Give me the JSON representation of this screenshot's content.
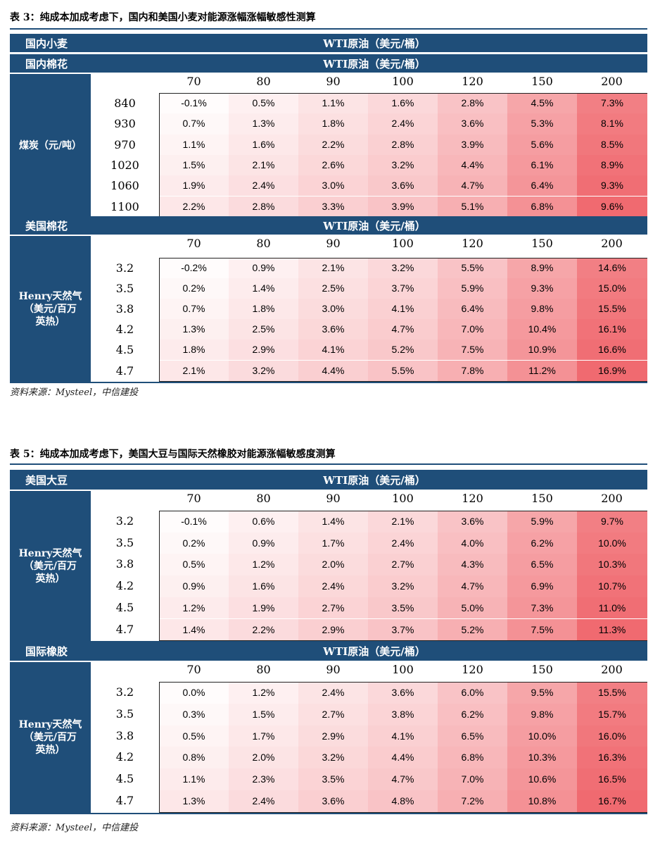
{
  "colors": {
    "header_bg": "#1f4e79",
    "header_text": "#ffffff",
    "cell_low": "#ffffff",
    "cell_high": "#f06a70"
  },
  "columns": [
    "70",
    "80",
    "90",
    "100",
    "120",
    "150",
    "200"
  ],
  "table3": {
    "title": "表 3：纯成本加成考虑下，国内和美国小麦对能源涨幅涨幅敏感性测算",
    "sections": [
      {
        "banners": [
          {
            "label": "国内小麦",
            "header": "WTI原油（美元/桶）"
          },
          {
            "label": "国内棉花",
            "header": "WTI原油（美元/桶）"
          }
        ],
        "row_axis_label": "煤炭（元/吨）",
        "rows": [
          {
            "label": "840",
            "values": [
              "-0.1%",
              "0.5%",
              "1.1%",
              "1.6%",
              "2.8%",
              "4.5%",
              "7.3%"
            ]
          },
          {
            "label": "930",
            "values": [
              "0.7%",
              "1.3%",
              "1.8%",
              "2.4%",
              "3.6%",
              "5.3%",
              "8.1%"
            ]
          },
          {
            "label": "970",
            "values": [
              "1.1%",
              "1.6%",
              "2.2%",
              "2.8%",
              "3.9%",
              "5.6%",
              "8.5%"
            ]
          },
          {
            "label": "1020",
            "values": [
              "1.5%",
              "2.1%",
              "2.6%",
              "3.2%",
              "4.4%",
              "6.1%",
              "8.9%"
            ]
          },
          {
            "label": "1060",
            "values": [
              "1.9%",
              "2.4%",
              "3.0%",
              "3.6%",
              "4.7%",
              "6.4%",
              "9.3%"
            ]
          },
          {
            "label": "1100",
            "values": [
              "2.2%",
              "2.8%",
              "3.3%",
              "3.9%",
              "5.1%",
              "6.8%",
              "9.6%"
            ]
          }
        ]
      },
      {
        "banners": [
          {
            "label": "美国棉花",
            "header": "WTI原油（美元/桶）"
          }
        ],
        "row_axis_label": "Henry天然气\n（美元/百万\n英热）",
        "rows": [
          {
            "label": "3.2",
            "values": [
              "-0.2%",
              "0.9%",
              "2.1%",
              "3.2%",
              "5.5%",
              "8.9%",
              "14.6%"
            ]
          },
          {
            "label": "3.5",
            "values": [
              "0.2%",
              "1.4%",
              "2.5%",
              "3.7%",
              "5.9%",
              "9.3%",
              "15.0%"
            ]
          },
          {
            "label": "3.8",
            "values": [
              "0.7%",
              "1.8%",
              "3.0%",
              "4.1%",
              "6.4%",
              "9.8%",
              "15.5%"
            ]
          },
          {
            "label": "4.2",
            "values": [
              "1.3%",
              "2.5%",
              "3.6%",
              "4.7%",
              "7.0%",
              "10.4%",
              "16.1%"
            ]
          },
          {
            "label": "4.5",
            "values": [
              "1.8%",
              "2.9%",
              "4.1%",
              "5.2%",
              "7.5%",
              "10.9%",
              "16.6%"
            ]
          },
          {
            "label": "4.7",
            "values": [
              "2.1%",
              "3.2%",
              "4.4%",
              "5.5%",
              "7.8%",
              "11.2%",
              "16.9%"
            ]
          }
        ]
      }
    ],
    "source": "资料来源：Mysteel，中信建投"
  },
  "table5": {
    "title": "表 5：纯成本加成考虑下，美国大豆与国际天然橡胶对能源涨幅敏感度测算",
    "sections": [
      {
        "banners": [
          {
            "label": "美国大豆",
            "header": "WTI原油（美元/桶）"
          }
        ],
        "row_axis_label": "Henry天然气\n（美元/百万\n英热）",
        "rows": [
          {
            "label": "3.2",
            "values": [
              "-0.1%",
              "0.6%",
              "1.4%",
              "2.1%",
              "3.6%",
              "5.9%",
              "9.7%"
            ]
          },
          {
            "label": "3.5",
            "values": [
              "0.2%",
              "0.9%",
              "1.7%",
              "2.4%",
              "4.0%",
              "6.2%",
              "10.0%"
            ]
          },
          {
            "label": "3.8",
            "values": [
              "0.5%",
              "1.2%",
              "2.0%",
              "2.7%",
              "4.3%",
              "6.5%",
              "10.3%"
            ]
          },
          {
            "label": "4.2",
            "values": [
              "0.9%",
              "1.6%",
              "2.4%",
              "3.2%",
              "4.7%",
              "6.9%",
              "10.7%"
            ]
          },
          {
            "label": "4.5",
            "values": [
              "1.2%",
              "1.9%",
              "2.7%",
              "3.5%",
              "5.0%",
              "7.3%",
              "11.0%"
            ]
          },
          {
            "label": "4.7",
            "values": [
              "1.4%",
              "2.2%",
              "2.9%",
              "3.7%",
              "5.2%",
              "7.5%",
              "11.3%"
            ]
          }
        ]
      },
      {
        "banners": [
          {
            "label": "国际橡胶",
            "header": "WTI原油（美元/桶）"
          }
        ],
        "row_axis_label": "Henry天然气\n（美元/百万\n英热）",
        "rows": [
          {
            "label": "3.2",
            "values": [
              "0.0%",
              "1.2%",
              "2.4%",
              "3.6%",
              "6.0%",
              "9.5%",
              "15.5%"
            ]
          },
          {
            "label": "3.5",
            "values": [
              "0.3%",
              "1.5%",
              "2.7%",
              "3.8%",
              "6.2%",
              "9.8%",
              "15.7%"
            ]
          },
          {
            "label": "3.8",
            "values": [
              "0.5%",
              "1.7%",
              "2.9%",
              "4.1%",
              "6.5%",
              "10.0%",
              "16.0%"
            ]
          },
          {
            "label": "4.2",
            "values": [
              "0.8%",
              "2.0%",
              "3.2%",
              "4.4%",
              "6.8%",
              "10.3%",
              "16.3%"
            ]
          },
          {
            "label": "4.5",
            "values": [
              "1.1%",
              "2.3%",
              "3.5%",
              "4.7%",
              "7.0%",
              "10.6%",
              "16.5%"
            ]
          },
          {
            "label": "4.7",
            "values": [
              "1.3%",
              "2.4%",
              "3.6%",
              "4.8%",
              "7.2%",
              "10.8%",
              "16.7%"
            ]
          }
        ]
      }
    ],
    "source": "资料来源：Mysteel，中信建投"
  }
}
